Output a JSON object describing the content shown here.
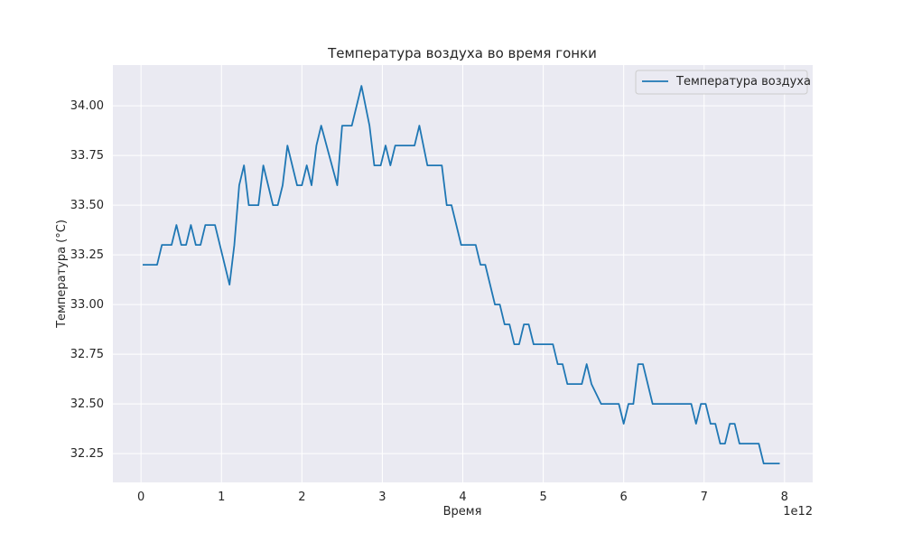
{
  "chart_data": {
    "type": "line",
    "title": "Температура воздуха во время гонки",
    "xlabel": "Время",
    "ylabel": "Температура (°C)",
    "x_offset_label": "1e12",
    "xlim": [
      -0.35,
      8.35
    ],
    "ylim": [
      32.105,
      34.205
    ],
    "xticks": [
      0,
      1,
      2,
      3,
      4,
      5,
      6,
      7,
      8
    ],
    "xtick_labels": [
      "0",
      "1",
      "2",
      "3",
      "4",
      "5",
      "6",
      "7",
      "8"
    ],
    "yticks": [
      32.25,
      32.5,
      32.75,
      33.0,
      33.25,
      33.5,
      33.75,
      34.0
    ],
    "ytick_labels": [
      "32.25",
      "32.50",
      "32.75",
      "33.00",
      "33.25",
      "33.50",
      "33.75",
      "34.00"
    ],
    "grid": true,
    "legend_position": "top-right",
    "colors": {
      "line": "#1f77b4",
      "plot_bg": "#eaeaf2",
      "grid": "#ffffff"
    },
    "series": [
      {
        "name": "Температура воздуха",
        "x": [
          0.02,
          0.2,
          0.26,
          0.38,
          0.44,
          0.5,
          0.56,
          0.62,
          0.68,
          0.74,
          0.8,
          0.92,
          1.1,
          1.16,
          1.22,
          1.28,
          1.34,
          1.46,
          1.52,
          1.64,
          1.7,
          1.76,
          1.82,
          1.94,
          2.0,
          2.06,
          2.12,
          2.18,
          2.24,
          2.44,
          2.5,
          2.62,
          2.74,
          2.84,
          2.9,
          2.98,
          3.04,
          3.1,
          3.16,
          3.4,
          3.46,
          3.56,
          3.74,
          3.8,
          3.86,
          3.98,
          4.16,
          4.22,
          4.28,
          4.4,
          4.46,
          4.52,
          4.58,
          4.64,
          4.7,
          4.76,
          4.82,
          4.88,
          4.94,
          5.12,
          5.18,
          5.24,
          5.3,
          5.48,
          5.54,
          5.6,
          5.72,
          5.94,
          6.0,
          6.06,
          6.12,
          6.18,
          6.24,
          6.36,
          6.42,
          6.84,
          6.9,
          6.96,
          7.02,
          7.08,
          7.14,
          7.2,
          7.26,
          7.32,
          7.38,
          7.44,
          7.5,
          7.68,
          7.74,
          7.94
        ],
        "y": [
          33.2,
          33.2,
          33.3,
          33.3,
          33.4,
          33.3,
          33.3,
          33.4,
          33.3,
          33.3,
          33.4,
          33.4,
          33.1,
          33.3,
          33.6,
          33.7,
          33.5,
          33.5,
          33.7,
          33.5,
          33.5,
          33.6,
          33.8,
          33.6,
          33.6,
          33.7,
          33.6,
          33.8,
          33.9,
          33.6,
          33.9,
          33.9,
          34.1,
          33.9,
          33.7,
          33.7,
          33.8,
          33.7,
          33.8,
          33.8,
          33.9,
          33.7,
          33.7,
          33.5,
          33.5,
          33.3,
          33.3,
          33.2,
          33.2,
          33.0,
          33.0,
          32.9,
          32.9,
          32.8,
          32.8,
          32.9,
          32.9,
          32.8,
          32.8,
          32.8,
          32.7,
          32.7,
          32.6,
          32.6,
          32.7,
          32.6,
          32.5,
          32.5,
          32.4,
          32.5,
          32.5,
          32.7,
          32.7,
          32.5,
          32.5,
          32.5,
          32.4,
          32.5,
          32.5,
          32.4,
          32.4,
          32.3,
          32.3,
          32.4,
          32.4,
          32.3,
          32.3,
          32.3,
          32.2,
          32.2
        ]
      }
    ]
  }
}
